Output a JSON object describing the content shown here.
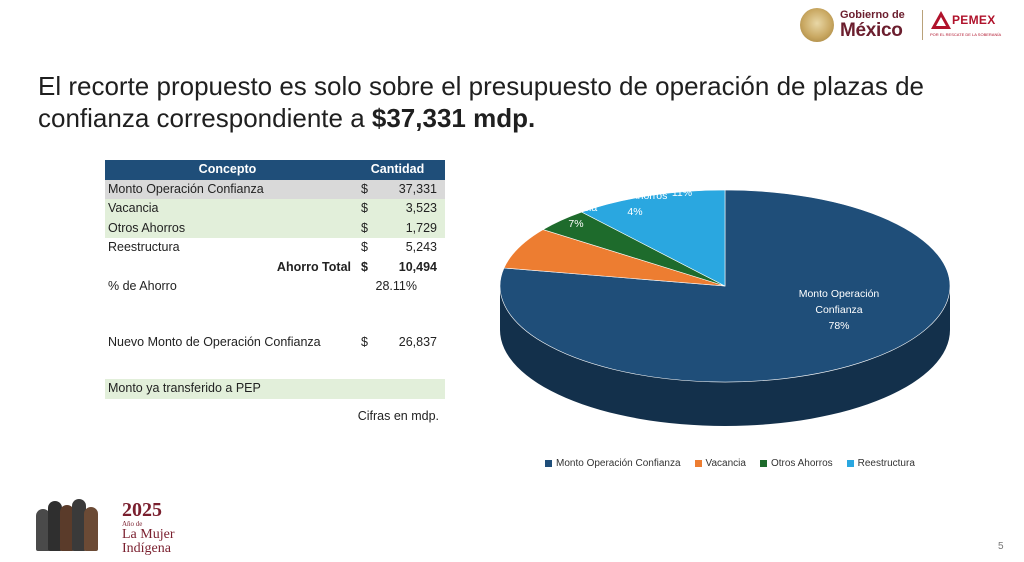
{
  "header": {
    "gob_line1": "Gobierno de",
    "gob_line2": "México",
    "pemex_name": "PEMEX",
    "pemex_tagline": "POR EL RESCATE DE LA SOBERANÍA"
  },
  "slide": {
    "title_main": "El recorte propuesto es solo sobre el presupuesto de operación de plazas de confianza correspondiente a ",
    "title_bold": "$37,331 mdp.",
    "page_number": "5"
  },
  "table": {
    "header": {
      "concept": "Concepto",
      "amount": "Cantidad"
    },
    "rows": [
      {
        "label": "Monto Operación Confianza",
        "currency": "$",
        "value": "37,331"
      },
      {
        "label": "Vacancia",
        "currency": "$",
        "value": "3,523"
      },
      {
        "label": "Otros Ahorros",
        "currency": "$",
        "value": "1,729"
      },
      {
        "label": "Reestructura",
        "currency": "$",
        "value": "5,243"
      }
    ],
    "total": {
      "label": "Ahorro Total",
      "currency": "$",
      "value": "10,494"
    },
    "pct": {
      "label": "% de Ahorro",
      "value": "28.11%"
    },
    "nuevo": {
      "label": "Nuevo Monto de Operación Confianza",
      "currency": "$",
      "value": "26,837"
    },
    "transfer_note": "Monto ya transferido a PEP",
    "units_note": "Cifras en mdp."
  },
  "chart_data": {
    "type": "pie",
    "categories": [
      "Monto Operación Confianza",
      "Vacancia",
      "Otros Ahorros",
      "Reestructura"
    ],
    "values": [
      78,
      7,
      4,
      11
    ],
    "labels": [
      "78%",
      "7%",
      "4%",
      "11%"
    ],
    "colors": [
      "#1f4e79",
      "#ed7d31",
      "#1e6b2c",
      "#2aa7e0"
    ],
    "style": "3d",
    "legend_position": "bottom"
  },
  "footer": {
    "year": "2025",
    "line1": "Año de",
    "line2": "La Mujer",
    "line3": "Indígena"
  }
}
